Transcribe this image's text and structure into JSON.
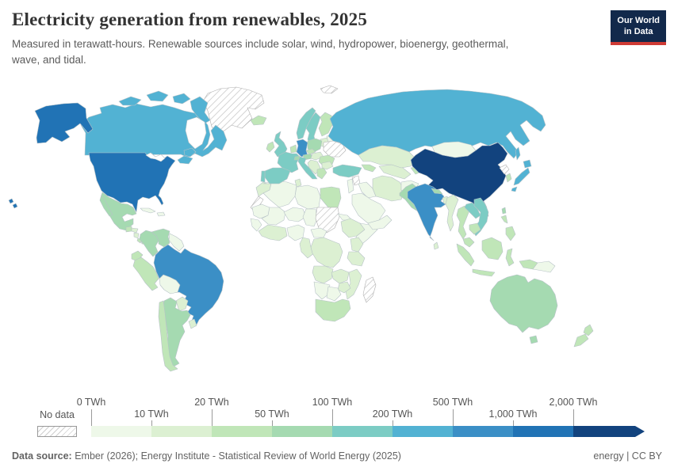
{
  "header": {
    "title": "Electricity generation from renewables, 2025",
    "subtitle_line1": "Measured in terawatt-hours. Renewable sources include solar, wind, hydropower, bioenergy, geothermal,",
    "subtitle_line2": "wave, and tidal."
  },
  "logo": {
    "line1": "Our World",
    "line2": "in Data"
  },
  "footer": {
    "source_label": "Data source:",
    "source_text": " Ember (2026); Energy Institute - Statistical Review of World Energy (2025)",
    "right_text": "energy | CC BY"
  },
  "chart_data": {
    "type": "choropleth_map",
    "title": "Electricity generation from renewables, 2025",
    "unit": "TWh",
    "legend_tick_labels": [
      "0 TWh",
      "10 TWh",
      "20 TWh",
      "50 TWh",
      "100 TWh",
      "200 TWh",
      "500 TWh",
      "1,000 TWh",
      "2,000 TWh"
    ],
    "legend_stops": [
      0,
      10,
      20,
      50,
      100,
      200,
      500,
      1000,
      2000
    ],
    "no_data_label": "No data",
    "bucket_order": [
      "b1",
      "b2",
      "b3",
      "b4",
      "b5",
      "b6",
      "b7",
      "b8",
      "b9"
    ],
    "bucket_ranges": {
      "b1": "0-10 TWh",
      "b2": "10-20 TWh",
      "b3": "20-50 TWh",
      "b4": "50-100 TWh",
      "b5": "100-200 TWh",
      "b6": "200-500 TWh",
      "b7": "500-1,000 TWh",
      "b8": "1,000-2,000 TWh",
      "b9": "2,000+ TWh",
      "no_data": "No data"
    },
    "palette": {
      "b1": "#eef8e9",
      "b2": "#dcf0d2",
      "b3": "#c0e6b8",
      "b4": "#a5dab1",
      "b5": "#7cccc4",
      "b6": "#52b2d3",
      "b7": "#3b8fc6",
      "b8": "#2173b5",
      "b9": "#12437e"
    },
    "countries": [
      {
        "id": "united-states",
        "name": "United States",
        "bucket": "b8"
      },
      {
        "id": "canada",
        "name": "Canada",
        "bucket": "b6"
      },
      {
        "id": "greenland",
        "name": "Greenland",
        "bucket": "no_data"
      },
      {
        "id": "mexico",
        "name": "Mexico",
        "bucket": "b4"
      },
      {
        "id": "guatemala",
        "name": "Guatemala",
        "bucket": "b3"
      },
      {
        "id": "honduras",
        "name": "Honduras",
        "bucket": "b2"
      },
      {
        "id": "nicaragua",
        "name": "Nicaragua",
        "bucket": "b2"
      },
      {
        "id": "costa-rica",
        "name": "Costa Rica",
        "bucket": "b3"
      },
      {
        "id": "panama",
        "name": "Panama",
        "bucket": "b3"
      },
      {
        "id": "cuba",
        "name": "Cuba",
        "bucket": "b1"
      },
      {
        "id": "hispaniola",
        "name": "Dominican Republic / Haiti",
        "bucket": "b1"
      },
      {
        "id": "colombia",
        "name": "Colombia",
        "bucket": "b4"
      },
      {
        "id": "venezuela",
        "name": "Venezuela",
        "bucket": "b4"
      },
      {
        "id": "guianas",
        "name": "Guyana / Suriname / French Guiana",
        "bucket": "b1"
      },
      {
        "id": "brazil",
        "name": "Brazil",
        "bucket": "b7"
      },
      {
        "id": "ecuador",
        "name": "Ecuador",
        "bucket": "b3"
      },
      {
        "id": "peru",
        "name": "Peru",
        "bucket": "b3"
      },
      {
        "id": "bolivia",
        "name": "Bolivia",
        "bucket": "b1"
      },
      {
        "id": "paraguay",
        "name": "Paraguay",
        "bucket": "b2"
      },
      {
        "id": "chile",
        "name": "Chile",
        "bucket": "b3"
      },
      {
        "id": "argentina",
        "name": "Argentina",
        "bucket": "b4"
      },
      {
        "id": "uruguay",
        "name": "Uruguay",
        "bucket": "b2"
      },
      {
        "id": "iceland",
        "name": "Iceland",
        "bucket": "b3"
      },
      {
        "id": "united-kingdom",
        "name": "United Kingdom",
        "bucket": "b5"
      },
      {
        "id": "ireland",
        "name": "Ireland",
        "bucket": "b3"
      },
      {
        "id": "norway",
        "name": "Norway",
        "bucket": "b5"
      },
      {
        "id": "sweden",
        "name": "Sweden",
        "bucket": "b5"
      },
      {
        "id": "finland",
        "name": "Finland",
        "bucket": "b3"
      },
      {
        "id": "denmark",
        "name": "Denmark",
        "bucket": "b5"
      },
      {
        "id": "baltics",
        "name": "Baltic states",
        "bucket": "b2"
      },
      {
        "id": "belarus",
        "name": "Belarus",
        "bucket": "b1"
      },
      {
        "id": "poland",
        "name": "Poland",
        "bucket": "b4"
      },
      {
        "id": "germany",
        "name": "Germany",
        "bucket": "b7"
      },
      {
        "id": "benelux",
        "name": "Netherlands / Belgium",
        "bucket": "b3"
      },
      {
        "id": "france",
        "name": "France",
        "bucket": "b5"
      },
      {
        "id": "switzerland",
        "name": "Switzerland",
        "bucket": "b4"
      },
      {
        "id": "austria",
        "name": "Austria",
        "bucket": "b4"
      },
      {
        "id": "czechia",
        "name": "Czechia",
        "bucket": "b3"
      },
      {
        "id": "slovakia-hungary",
        "name": "Slovakia / Hungary",
        "bucket": "b2"
      },
      {
        "id": "ukraine",
        "name": "Ukraine",
        "bucket": "no_data"
      },
      {
        "id": "romania",
        "name": "Romania",
        "bucket": "b3"
      },
      {
        "id": "balkans",
        "name": "Western Balkans",
        "bucket": "b2"
      },
      {
        "id": "bulgaria",
        "name": "Bulgaria",
        "bucket": "b2"
      },
      {
        "id": "greece",
        "name": "Greece",
        "bucket": "b3"
      },
      {
        "id": "italy",
        "name": "Italy",
        "bucket": "b5"
      },
      {
        "id": "spain",
        "name": "Spain",
        "bucket": "b5"
      },
      {
        "id": "portugal",
        "name": "Portugal",
        "bucket": "b5"
      },
      {
        "id": "svalbard",
        "name": "Svalbard",
        "bucket": "no_data"
      },
      {
        "id": "russia",
        "name": "Russia",
        "bucket": "b6"
      },
      {
        "id": "turkey",
        "name": "Turkey",
        "bucket": "b5"
      },
      {
        "id": "caucasus",
        "name": "Georgia / Azerbaijan",
        "bucket": "b3"
      },
      {
        "id": "syria",
        "name": "Syria",
        "bucket": "no_data"
      },
      {
        "id": "levant",
        "name": "Israel / Jordan",
        "bucket": "b1"
      },
      {
        "id": "iraq",
        "name": "Iraq",
        "bucket": "b1"
      },
      {
        "id": "saudi-arabia",
        "name": "Saudi Arabia",
        "bucket": "b1"
      },
      {
        "id": "yemen-oman",
        "name": "Yemen / Oman",
        "bucket": "b1"
      },
      {
        "id": "iran",
        "name": "Iran",
        "bucket": "b2"
      },
      {
        "id": "afghanistan",
        "name": "Afghanistan",
        "bucket": "b1"
      },
      {
        "id": "central-asia",
        "name": "Turkmenistan / Uzbekistan",
        "bucket": "b2"
      },
      {
        "id": "kazakhstan",
        "name": "Kazakhstan",
        "bucket": "b2"
      },
      {
        "id": "kyrgyz-tajik",
        "name": "Kyrgyzstan / Tajikistan",
        "bucket": "b3"
      },
      {
        "id": "mongolia",
        "name": "Mongolia",
        "bucket": "b1"
      },
      {
        "id": "china",
        "name": "China",
        "bucket": "b9"
      },
      {
        "id": "taiwan",
        "name": "Taiwan",
        "bucket": "b4"
      },
      {
        "id": "north-korea",
        "name": "North Korea",
        "bucket": "no_data"
      },
      {
        "id": "south-korea",
        "name": "South Korea",
        "bucket": "b3"
      },
      {
        "id": "japan",
        "name": "Japan",
        "bucket": "b6"
      },
      {
        "id": "pakistan",
        "name": "Pakistan",
        "bucket": "b4"
      },
      {
        "id": "india",
        "name": "India",
        "bucket": "b7"
      },
      {
        "id": "nepal",
        "name": "Nepal",
        "bucket": "b4"
      },
      {
        "id": "bangladesh",
        "name": "Bangladesh",
        "bucket": "b2"
      },
      {
        "id": "sri-lanka",
        "name": "Sri Lanka",
        "bucket": "b2"
      },
      {
        "id": "myanmar",
        "name": "Myanmar",
        "bucket": "b2"
      },
      {
        "id": "thailand",
        "name": "Thailand",
        "bucket": "b3"
      },
      {
        "id": "laos",
        "name": "Laos",
        "bucket": "b5"
      },
      {
        "id": "vietnam",
        "name": "Vietnam",
        "bucket": "b5"
      },
      {
        "id": "cambodia",
        "name": "Cambodia",
        "bucket": "b3"
      },
      {
        "id": "malaysia",
        "name": "Malaysia",
        "bucket": "b3"
      },
      {
        "id": "indonesia",
        "name": "Indonesia",
        "bucket": "b3"
      },
      {
        "id": "philippines",
        "name": "Philippines",
        "bucket": "b3"
      },
      {
        "id": "papua-new-guinea",
        "name": "Papua New Guinea",
        "bucket": "b1"
      },
      {
        "id": "australia",
        "name": "Australia",
        "bucket": "b4"
      },
      {
        "id": "new-zealand",
        "name": "New Zealand",
        "bucket": "b3"
      },
      {
        "id": "morocco",
        "name": "Morocco",
        "bucket": "b2"
      },
      {
        "id": "western-sahara",
        "name": "Western Sahara",
        "bucket": "no_data"
      },
      {
        "id": "algeria",
        "name": "Algeria",
        "bucket": "b1"
      },
      {
        "id": "tunisia",
        "name": "Tunisia",
        "bucket": "b2"
      },
      {
        "id": "libya",
        "name": "Libya",
        "bucket": "b1"
      },
      {
        "id": "egypt",
        "name": "Egypt",
        "bucket": "b3"
      },
      {
        "id": "mauritania",
        "name": "Mauritania",
        "bucket": "b1"
      },
      {
        "id": "mali",
        "name": "Mali",
        "bucket": "b1"
      },
      {
        "id": "niger",
        "name": "Niger",
        "bucket": "b1"
      },
      {
        "id": "chad",
        "name": "Chad",
        "bucket": "b1"
      },
      {
        "id": "sudan",
        "name": "Sudan",
        "bucket": "no_data"
      },
      {
        "id": "horn-of-africa",
        "name": "Eritrea / Djibouti",
        "bucket": "b1"
      },
      {
        "id": "senegal-guinea",
        "name": "Senegal / Guinea",
        "bucket": "b1"
      },
      {
        "id": "west-africa-coast",
        "name": "Côte d'Ivoire / Ghana",
        "bucket": "b2"
      },
      {
        "id": "nigeria",
        "name": "Nigeria",
        "bucket": "b1"
      },
      {
        "id": "cameroon-gabon",
        "name": "Cameroon / Gabon",
        "bucket": "b2"
      },
      {
        "id": "central-african-republic",
        "name": "Central African Republic",
        "bucket": "b1"
      },
      {
        "id": "ethiopia",
        "name": "Ethiopia",
        "bucket": "b2"
      },
      {
        "id": "somalia",
        "name": "Somalia",
        "bucket": "b1"
      },
      {
        "id": "kenya",
        "name": "Kenya",
        "bucket": "b2"
      },
      {
        "id": "tanzania",
        "name": "Tanzania",
        "bucket": "b2"
      },
      {
        "id": "dr-congo",
        "name": "Democratic Republic of Congo",
        "bucket": "b2"
      },
      {
        "id": "angola",
        "name": "Angola",
        "bucket": "b2"
      },
      {
        "id": "zambia",
        "name": "Zambia",
        "bucket": "b2"
      },
      {
        "id": "mozambique",
        "name": "Mozambique",
        "bucket": "b2"
      },
      {
        "id": "zimbabwe",
        "name": "Zimbabwe",
        "bucket": "b2"
      },
      {
        "id": "namibia",
        "name": "Namibia",
        "bucket": "b1"
      },
      {
        "id": "botswana",
        "name": "Botswana",
        "bucket": "b1"
      },
      {
        "id": "south-africa",
        "name": "South Africa",
        "bucket": "b3"
      },
      {
        "id": "madagascar",
        "name": "Madagascar",
        "bucket": "no_data"
      }
    ]
  }
}
